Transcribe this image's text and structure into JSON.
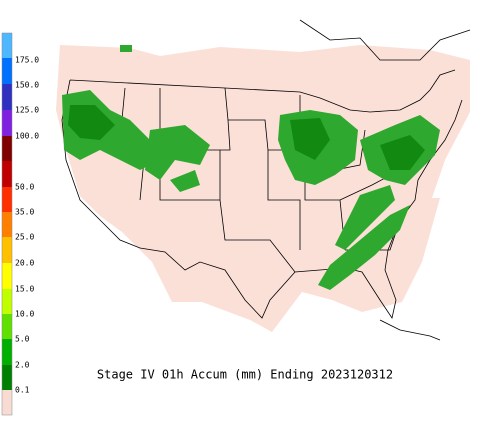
{
  "legend": {
    "labels": [
      "175.0",
      "150.0",
      "125.0",
      "100.0",
      "50.0",
      "35.0",
      "25.0",
      "20.0",
      "15.0",
      "10.0",
      "5.0",
      "2.0",
      "0.1"
    ]
  },
  "caption": "Stage IV 01h Accum (mm) Ending 2023120312"
}
